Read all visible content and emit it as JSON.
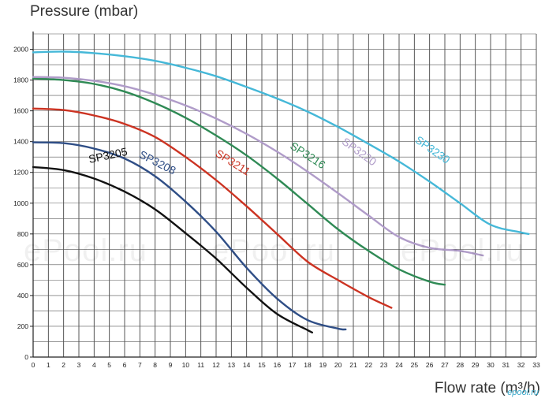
{
  "watermark": {
    "left": "ePool.ru",
    "center": "ePool.ru",
    "right": "ePool.ru"
  },
  "logo": "epool.ru",
  "chart_data": {
    "type": "line",
    "ylabel": "Pressure (mbar)",
    "xlabel": "Flow rate (m³/h)",
    "xlim": [
      0,
      33
    ],
    "ylim": [
      0,
      2100
    ],
    "xticks": [
      0,
      1,
      2,
      3,
      4,
      5,
      6,
      7,
      8,
      9,
      10,
      11,
      12,
      13,
      14,
      15,
      16,
      17,
      18,
      19,
      20,
      21,
      22,
      23,
      24,
      25,
      26,
      27,
      28,
      29,
      30,
      31,
      32,
      33
    ],
    "yticks": [
      0,
      200,
      400,
      600,
      800,
      1000,
      1200,
      1400,
      1600,
      1800,
      2000
    ],
    "grid": true,
    "series": [
      {
        "name": "SP3205",
        "color": "#111111",
        "label_x": 3.7,
        "label_y": 1260,
        "label_angle": -12,
        "x": [
          0,
          2,
          4,
          6,
          8,
          10,
          12,
          14,
          16,
          18,
          18.3
        ],
        "y": [
          1235,
          1215,
          1160,
          1075,
          960,
          805,
          640,
          450,
          280,
          175,
          160
        ]
      },
      {
        "name": "SP3208",
        "color": "#2f4e86",
        "label_x": 6.9,
        "label_y": 1300,
        "label_angle": 27,
        "x": [
          0,
          2,
          4,
          6,
          8,
          10,
          12,
          14,
          16,
          18,
          20,
          20.5
        ],
        "y": [
          1395,
          1390,
          1355,
          1290,
          1175,
          1010,
          815,
          580,
          380,
          240,
          185,
          180
        ]
      },
      {
        "name": "SP3211",
        "color": "#cc3322",
        "label_x": 11.9,
        "label_y": 1310,
        "label_angle": 32,
        "x": [
          0,
          2,
          4,
          6,
          8,
          10,
          12,
          14,
          16,
          18,
          20,
          22,
          23.5
        ],
        "y": [
          1615,
          1605,
          1570,
          1515,
          1430,
          1300,
          1150,
          980,
          800,
          620,
          500,
          390,
          320
        ]
      },
      {
        "name": "SP3216",
        "color": "#2f8a55",
        "label_x": 16.8,
        "label_y": 1360,
        "label_angle": 33,
        "x": [
          0,
          2,
          4,
          6,
          8,
          10,
          12,
          14,
          16,
          18,
          20,
          22,
          24,
          26,
          27
        ],
        "y": [
          1810,
          1800,
          1775,
          1725,
          1650,
          1555,
          1440,
          1310,
          1160,
          995,
          830,
          690,
          570,
          490,
          470
        ]
      },
      {
        "name": "SP3220",
        "color": "#b09cc9",
        "label_x": 20.2,
        "label_y": 1390,
        "label_angle": 36,
        "x": [
          0,
          2,
          4,
          6,
          8,
          10,
          12,
          14,
          16,
          18,
          20,
          22,
          24,
          26,
          28,
          29.5
        ],
        "y": [
          1820,
          1815,
          1795,
          1760,
          1705,
          1635,
          1550,
          1450,
          1335,
          1205,
          1065,
          920,
          780,
          710,
          690,
          660
        ]
      },
      {
        "name": "SP3230",
        "color": "#45b8d8",
        "label_x": 25,
        "label_y": 1400,
        "label_angle": 35,
        "x": [
          0,
          2,
          4,
          6,
          8,
          10,
          12,
          14,
          16,
          18,
          20,
          22,
          24,
          26,
          28,
          30,
          32,
          32.5
        ],
        "y": [
          1980,
          1985,
          1975,
          1955,
          1925,
          1880,
          1825,
          1755,
          1680,
          1595,
          1495,
          1385,
          1270,
          1140,
          1000,
          860,
          810,
          800
        ]
      }
    ]
  }
}
